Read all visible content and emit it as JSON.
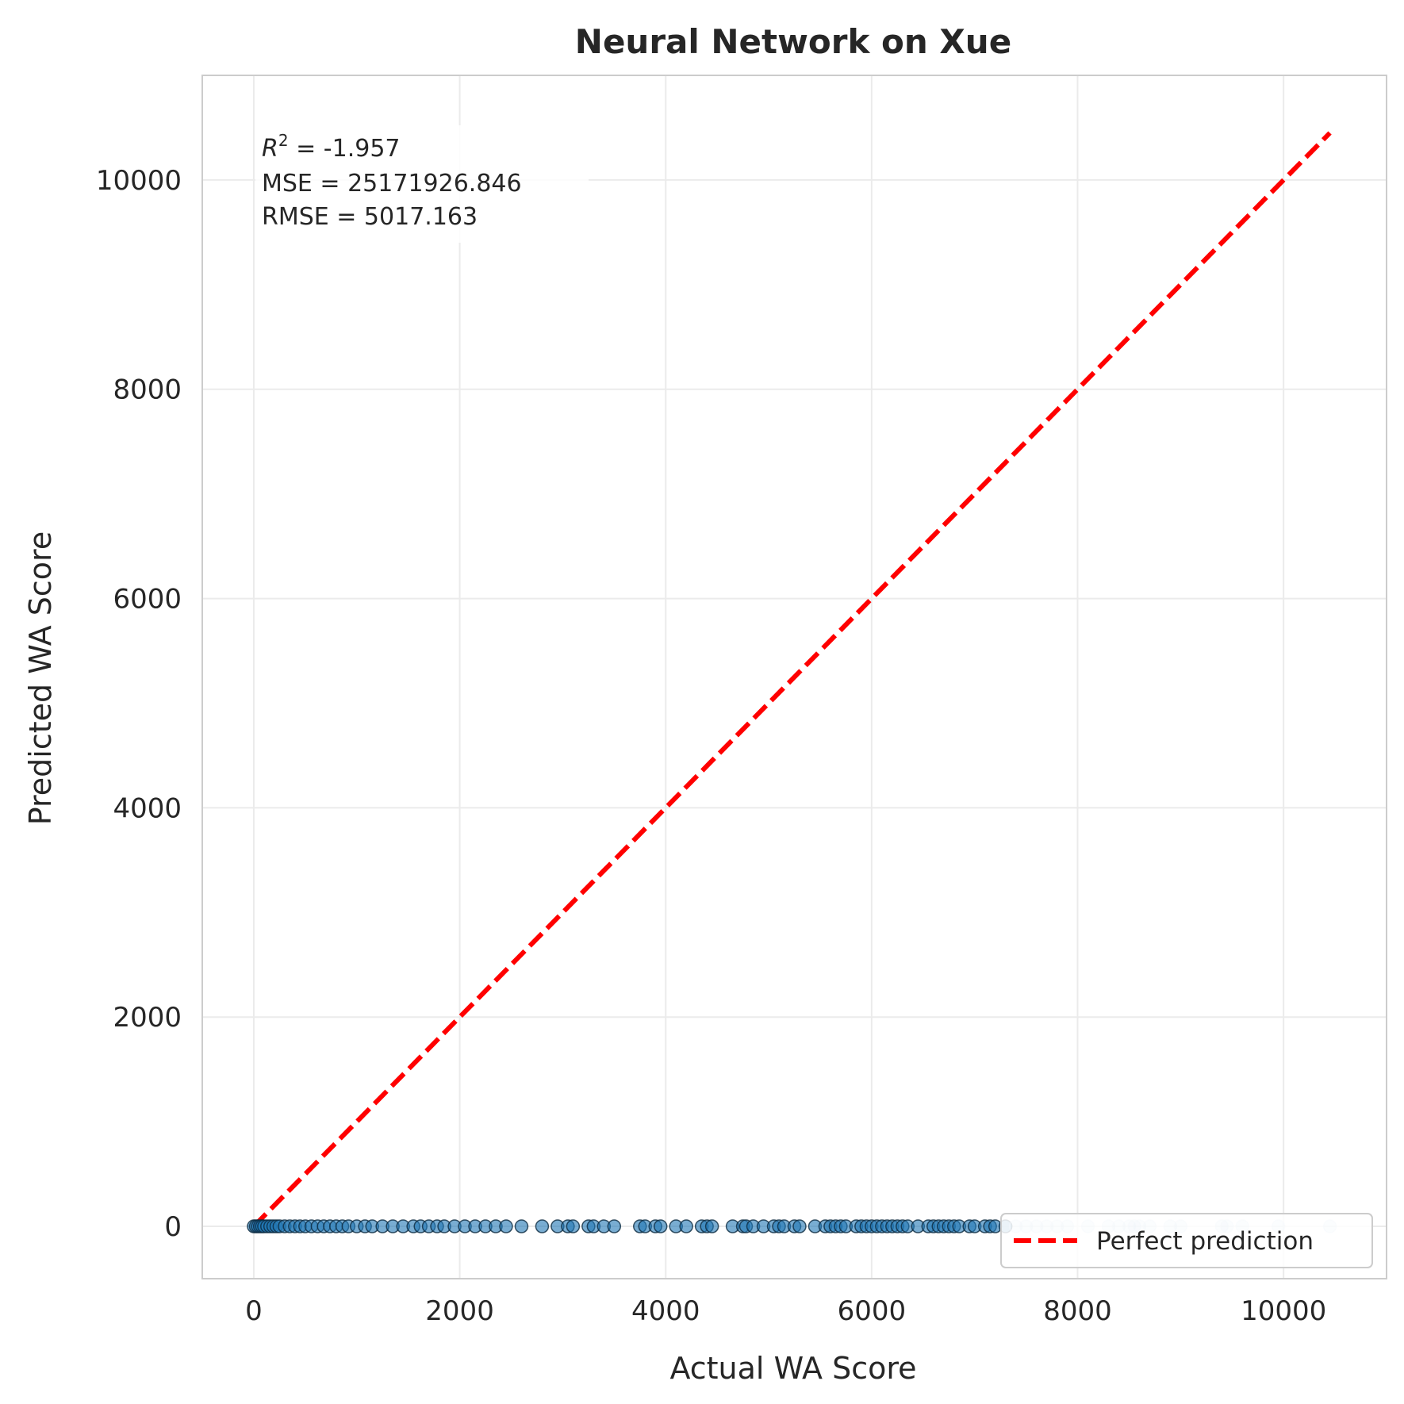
{
  "chart_data": {
    "type": "scatter",
    "title": "Neural Network on Xue",
    "xlabel": "Actual WA Score",
    "ylabel": "Predicted WA Score",
    "xlim": [
      -500,
      11000
    ],
    "ylim": [
      -500,
      11000
    ],
    "xticks": [
      0,
      2000,
      4000,
      6000,
      8000,
      10000
    ],
    "yticks": [
      0,
      2000,
      4000,
      6000,
      8000,
      10000
    ],
    "grid": true,
    "stats": {
      "r2_label": "R",
      "r2_sup": "2",
      "r2_value": " = -1.957",
      "mse_line": "MSE = 25171926.846",
      "rmse_line": "RMSE = 5017.163"
    },
    "legend": {
      "placement": "lower-right",
      "entries": [
        "Perfect prediction"
      ]
    },
    "reference_line": {
      "name": "Perfect prediction",
      "style": "dashed",
      "color": "#ff0000",
      "x": [
        0,
        10450
      ],
      "y": [
        0,
        10450
      ]
    },
    "series": [
      {
        "style": "scatter",
        "color": "#1f77b4",
        "x": [
          0,
          20,
          40,
          60,
          80,
          100,
          130,
          160,
          190,
          220,
          250,
          300,
          350,
          400,
          450,
          500,
          560,
          620,
          680,
          740,
          800,
          860,
          920,
          1000,
          1080,
          1150,
          1250,
          1350,
          1450,
          1550,
          1620,
          1700,
          1780,
          1850,
          1950,
          2050,
          2150,
          2250,
          2350,
          2450,
          2600,
          2800,
          2950,
          3050,
          3100,
          3250,
          3300,
          3400,
          3500,
          3750,
          3800,
          3900,
          3950,
          4100,
          4200,
          4350,
          4400,
          4450,
          4650,
          4750,
          4780,
          4850,
          4950,
          5050,
          5100,
          5150,
          5250,
          5300,
          5450,
          5550,
          5600,
          5650,
          5700,
          5750,
          5850,
          5900,
          5950,
          6000,
          6050,
          6100,
          6150,
          6200,
          6250,
          6300,
          6350,
          6450,
          6550,
          6600,
          6650,
          6700,
          6750,
          6800,
          6850,
          6950,
          7000,
          7100,
          7150,
          7200,
          7300,
          7400,
          7500,
          7600,
          7700,
          7800,
          7900,
          8100,
          8300,
          8400,
          8500,
          8550,
          8600,
          8700,
          8900,
          9000,
          9400,
          9450,
          9600,
          9950,
          10450
        ],
        "y": [
          0,
          0,
          0,
          0,
          0,
          0,
          0,
          0,
          0,
          0,
          0,
          0,
          0,
          0,
          0,
          0,
          0,
          0,
          0,
          0,
          0,
          0,
          0,
          0,
          0,
          0,
          0,
          0,
          0,
          0,
          0,
          0,
          0,
          0,
          0,
          0,
          0,
          0,
          0,
          0,
          0,
          0,
          0,
          0,
          0,
          0,
          0,
          0,
          0,
          0,
          0,
          0,
          0,
          0,
          0,
          0,
          0,
          0,
          0,
          0,
          0,
          0,
          0,
          0,
          0,
          0,
          0,
          0,
          0,
          0,
          0,
          0,
          0,
          0,
          0,
          0,
          0,
          0,
          0,
          0,
          0,
          0,
          0,
          0,
          0,
          0,
          0,
          0,
          0,
          0,
          0,
          0,
          0,
          0,
          0,
          0,
          0,
          0,
          0,
          0,
          0,
          0,
          0,
          0,
          0,
          0,
          0,
          0,
          0,
          0,
          0,
          0,
          0,
          0,
          0,
          0,
          0,
          0,
          0
        ]
      }
    ]
  }
}
